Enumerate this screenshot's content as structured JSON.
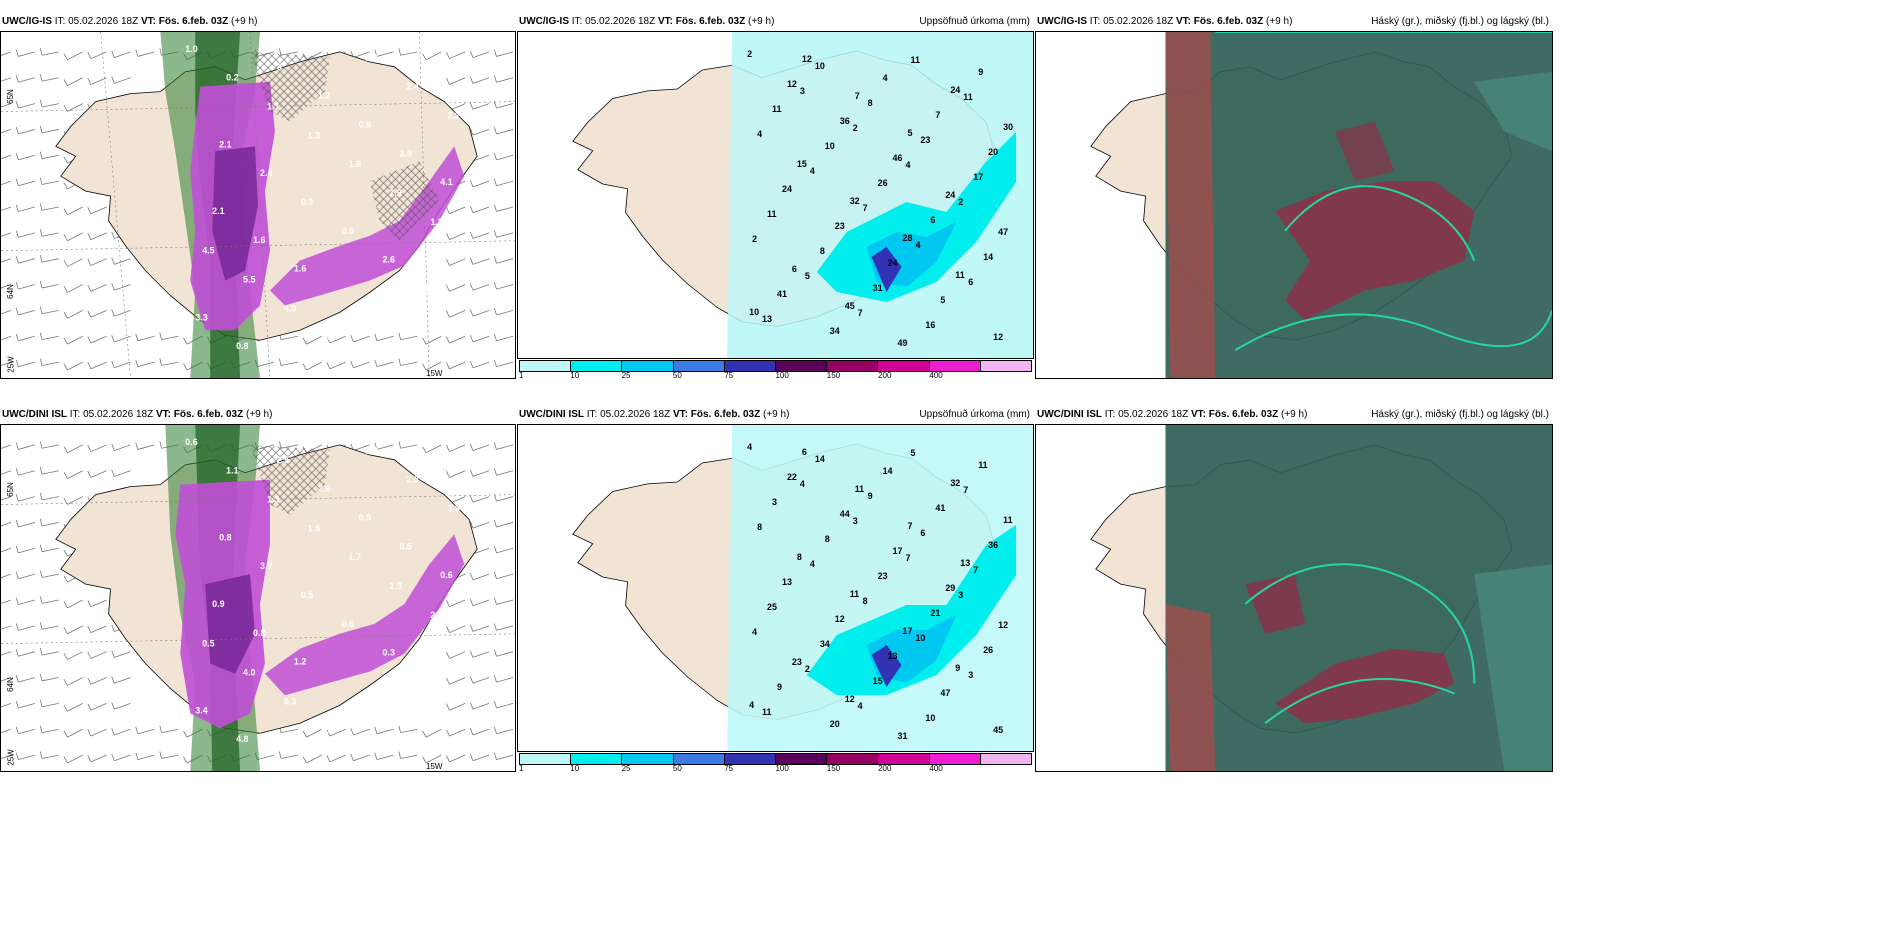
{
  "panels": [
    {
      "model": "UWC/IG-IS",
      "it_label": "IT:",
      "it_value": "05.02.2026 18Z",
      "vt_label": "VT:",
      "vt_value": "Fös. 6.feb. 03Z",
      "lead": "(+9 h)",
      "right_title": "",
      "coords": {
        "n65_top": "65N",
        "n64": "64N",
        "w25": "25W",
        "w15": "15W"
      },
      "values": [
        "1.0",
        "0.2",
        "1.1",
        "1.3",
        "1.8",
        "1.9",
        "1.3",
        "4.5",
        "5.5",
        "4.0",
        "2.6",
        "2.2",
        "2.4",
        "2.2",
        "2.1",
        "2.4",
        "0.3",
        "0.5",
        "2.6",
        "3.0",
        "3.3",
        "0.8",
        "3",
        "1.2",
        "0.6",
        "3.9",
        "4.1",
        "2.1",
        "1.6",
        "1.6"
      ]
    },
    {
      "model": "UWC/IG-IS",
      "it_label": "IT:",
      "it_value": "05.02.2026 18Z",
      "vt_label": "VT:",
      "vt_value": "Fös. 6.feb. 03Z",
      "lead": "(+9 h)",
      "right_title": "Uppsöfnuð úrkoma (mm)",
      "coords": {
        "n65": "65N",
        "n64": "64N"
      },
      "values": [
        "2",
        "3",
        "2",
        "4",
        "2",
        "2",
        "5",
        "7",
        "11",
        "11",
        "4",
        "4",
        "7",
        "4",
        "6",
        "13",
        "10",
        "8",
        "23",
        "17",
        "11",
        "8",
        "31",
        "16",
        "9",
        "11",
        "10",
        "26",
        "6",
        "14",
        "41",
        "34",
        "4",
        "7",
        "20",
        "24",
        "23",
        "24",
        "5",
        "12",
        "12",
        "36",
        "46",
        "24",
        "47",
        "6",
        "45",
        "49",
        "24",
        "30",
        "15",
        "32",
        "28",
        "11",
        "10",
        "12",
        "7",
        "5"
      ],
      "legend_labels": [
        "1",
        "10",
        "25",
        "50",
        "75",
        "100",
        "150",
        "200",
        "400",
        ""
      ],
      "legend_colors": [
        "#bff7f7",
        "#00eeee",
        "#00c8f0",
        "#3c7ae6",
        "#3232b4",
        "#5a005a",
        "#960064",
        "#d20096",
        "#f01ed2",
        "#f0b4f0"
      ]
    },
    {
      "model": "UWC/IG-IS",
      "it_label": "IT:",
      "it_value": "05.02.2026 18Z",
      "vt_label": "VT:",
      "vt_value": "Fös. 6.feb. 03Z",
      "lead": "(+9 h)",
      "right_title": "Háský (gr.), miðský (fj.bl.) og lágský (bl.)"
    },
    {
      "model": "UWC/DINI ISL",
      "it_label": "IT:",
      "it_value": "05.02.2026 18Z",
      "vt_label": "VT:",
      "vt_value": "Fös. 6.feb. 03Z",
      "lead": "(+9 h)",
      "right_title": "",
      "coords": {
        "n65_top": "65N",
        "n64": "64N",
        "w25": "25W",
        "w15": "15W"
      },
      "values": [
        "0.6",
        "1.1",
        "1.3",
        "1.5",
        "1.7",
        "1.3",
        "2.3",
        "0.5",
        "4.0",
        "5.3",
        "3.7",
        "2.2",
        "2.3",
        "3.8",
        "0.8",
        "3.7",
        "0.5",
        "0.6",
        "0.3",
        "0.2",
        "3.4",
        "4.8",
        "2.5",
        "2.6",
        "0.5",
        "0.5",
        "0.6",
        "0.9",
        "0.8",
        "1.2"
      ]
    },
    {
      "model": "UWC/DINI ISL",
      "it_label": "IT:",
      "it_value": "05.02.2026 18Z",
      "vt_label": "VT:",
      "vt_value": "Fös. 6.feb. 03Z",
      "lead": "(+9 h)",
      "right_title": "Uppsöfnuð úrkoma (mm)",
      "coords": {
        "n65": "65N",
        "n64": "64N"
      },
      "values": [
        "4",
        "4",
        "3",
        "7",
        "3",
        "4",
        "2",
        "4",
        "5",
        "7",
        "8",
        "4",
        "8",
        "10",
        "3",
        "11",
        "14",
        "9",
        "6",
        "7",
        "25",
        "34",
        "15",
        "10",
        "11",
        "3",
        "8",
        "23",
        "21",
        "26",
        "9",
        "20",
        "14",
        "41",
        "36",
        "13",
        "12",
        "13",
        "47",
        "45",
        "22",
        "44",
        "17",
        "29",
        "12",
        "23",
        "12",
        "31",
        "32",
        "11",
        "8",
        "11",
        "17",
        "9",
        "4",
        "6",
        "11",
        "7",
        "13"
      ],
      "legend_labels": [
        "1",
        "10",
        "25",
        "50",
        "75",
        "100",
        "150",
        "200",
        "400",
        ""
      ],
      "legend_colors": [
        "#bff7f7",
        "#00eeee",
        "#00c8f0",
        "#3c7ae6",
        "#3232b4",
        "#5a005a",
        "#960064",
        "#d20096",
        "#f01ed2",
        "#f0b4f0"
      ]
    },
    {
      "model": "UWC/DINI ISL",
      "it_label": "IT:",
      "it_value": "05.02.2026 18Z",
      "vt_label": "VT:",
      "vt_value": "Fös. 6.feb. 03Z",
      "lead": "(+9 h)",
      "right_title": "Háský (gr.), miðský (fj.bl.) og lágský (bl.)"
    }
  ]
}
